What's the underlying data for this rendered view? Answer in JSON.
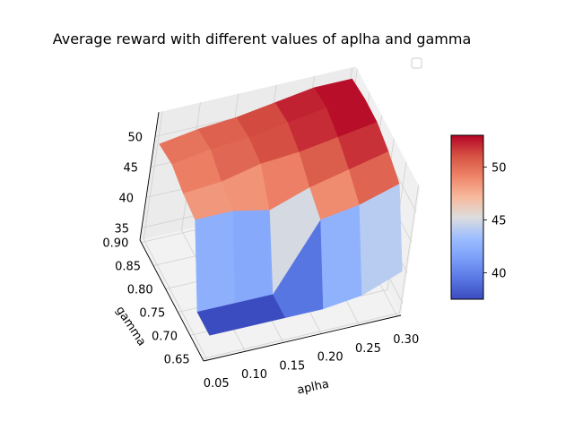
{
  "chart_data": {
    "type": "surface",
    "title": "Average reward with different values of aplha and gamma",
    "xlabel": "aplha",
    "ylabel": "gamma",
    "zlabel": "",
    "x": [
      0.05,
      0.1,
      0.15,
      0.2,
      0.25,
      0.3
    ],
    "y": [
      0.65,
      0.7,
      0.75,
      0.8,
      0.85,
      0.9
    ],
    "z": [
      [
        36.7,
        36.7,
        36.7,
        36.7,
        37.5,
        40.0
      ],
      [
        36.7,
        36.7,
        36.7,
        47.5,
        48.5,
        50.5
      ],
      [
        48.0,
        48.0,
        46.7,
        49.0,
        50.5,
        52.0
      ],
      [
        48.5,
        49.0,
        50.5,
        51.0,
        52.0,
        53.0
      ],
      [
        49.5,
        50.5,
        51.0,
        52.0,
        53.0,
        53.0
      ],
      [
        49.0,
        50.0,
        50.5,
        51.5,
        52.5,
        52.5
      ]
    ],
    "x_ticks": [
      "0.05",
      "0.10",
      "0.15",
      "0.20",
      "0.25",
      "0.30"
    ],
    "y_ticks": [
      "0.65",
      "0.70",
      "0.75",
      "0.80",
      "0.85",
      "0.90"
    ],
    "z_ticks": [
      "35",
      "40",
      "45",
      "50"
    ],
    "zlim": [
      33,
      54
    ],
    "colormap": "coolwarm",
    "colorbar": {
      "range": [
        37.5,
        53
      ],
      "ticks": [
        "40",
        "45",
        "50"
      ]
    },
    "legend": {
      "placement": "top-right",
      "entries": []
    },
    "grid": true
  }
}
